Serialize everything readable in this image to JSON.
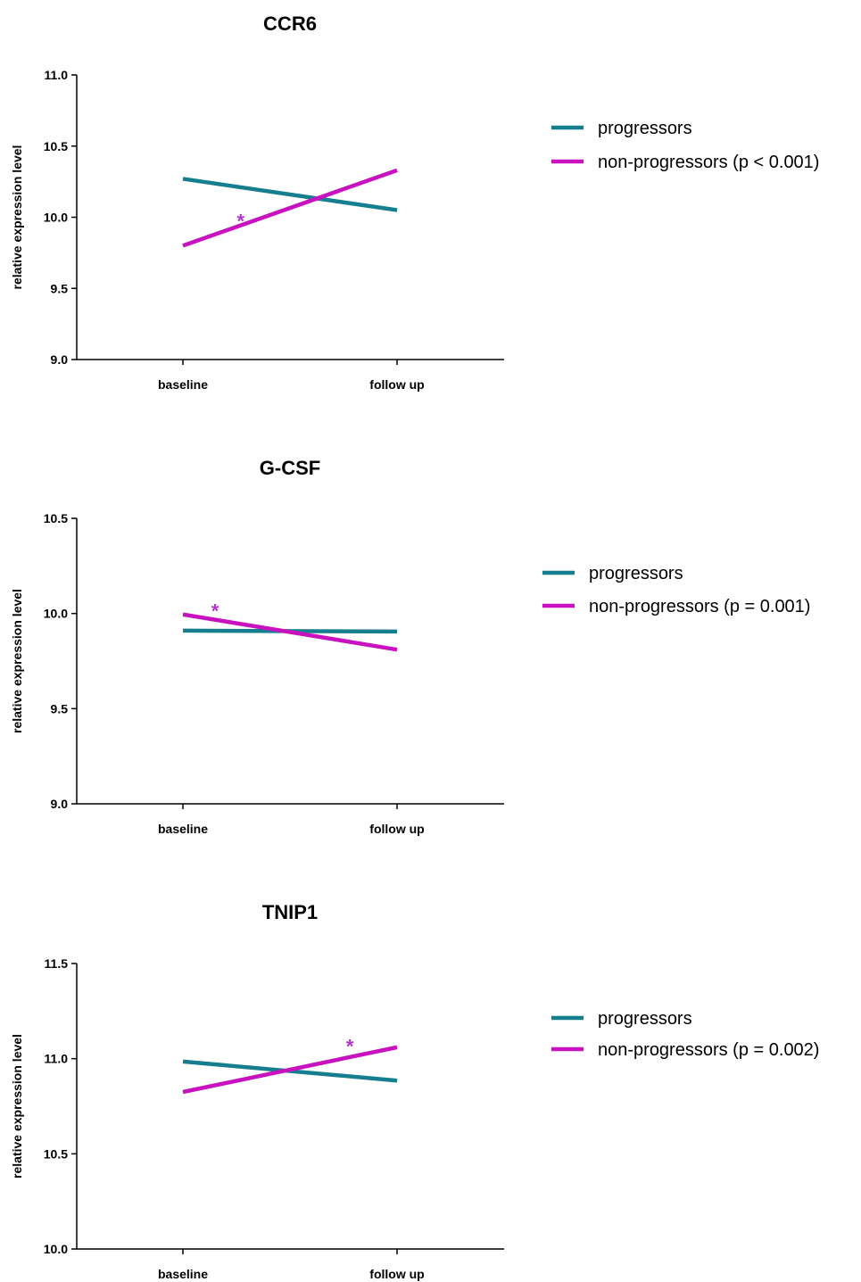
{
  "chart_data": [
    {
      "type": "line",
      "title": "CCR6",
      "ylabel": "relative expression level",
      "categories": [
        "baseline",
        "follow up"
      ],
      "ylim": [
        9.0,
        11.0
      ],
      "yticks": [
        "9.0",
        "9.5",
        "10.0",
        "10.5",
        "11.0"
      ],
      "series": [
        {
          "name": "progressors",
          "values": [
            10.27,
            10.05
          ],
          "color": "#167f8f"
        },
        {
          "name": "non-progressors  (p < 0.001)",
          "values": [
            9.8,
            10.33
          ],
          "color": "#c812c0"
        }
      ],
      "annotation": {
        "text": "*",
        "x": 0.27,
        "y": 9.98,
        "color": "#b233cc"
      },
      "legend_position": "right"
    },
    {
      "type": "line",
      "title": "G-CSF",
      "ylabel": "relative expression level",
      "categories": [
        "baseline",
        "follow up"
      ],
      "ylim": [
        9.0,
        10.5
      ],
      "yticks": [
        "9.0",
        "9.5",
        "10.0",
        "10.5"
      ],
      "series": [
        {
          "name": "progressors",
          "values": [
            9.91,
            9.905
          ],
          "color": "#167f8f"
        },
        {
          "name": "non-progressors (p = 0.001)",
          "values": [
            9.995,
            9.81
          ],
          "color": "#c812c0"
        }
      ],
      "annotation": {
        "text": "*",
        "x": 0.15,
        "y": 10.02,
        "color": "#b233cc"
      },
      "legend_position": "right"
    },
    {
      "type": "line",
      "title": "TNIP1",
      "ylabel": "relative expression level",
      "categories": [
        "baseline",
        "follow up"
      ],
      "ylim": [
        10.0,
        11.5
      ],
      "yticks": [
        "10.0",
        "10.5",
        "11.0",
        "11.5"
      ],
      "series": [
        {
          "name": "progressors",
          "values": [
            10.985,
            10.885
          ],
          "color": "#167f8f"
        },
        {
          "name": "non-progressors (p = 0.002)",
          "values": [
            10.825,
            11.06
          ],
          "color": "#c812c0"
        }
      ],
      "annotation": {
        "text": "*",
        "x": 0.78,
        "y": 11.07,
        "color": "#b233cc"
      },
      "legend_position": "right"
    }
  ]
}
